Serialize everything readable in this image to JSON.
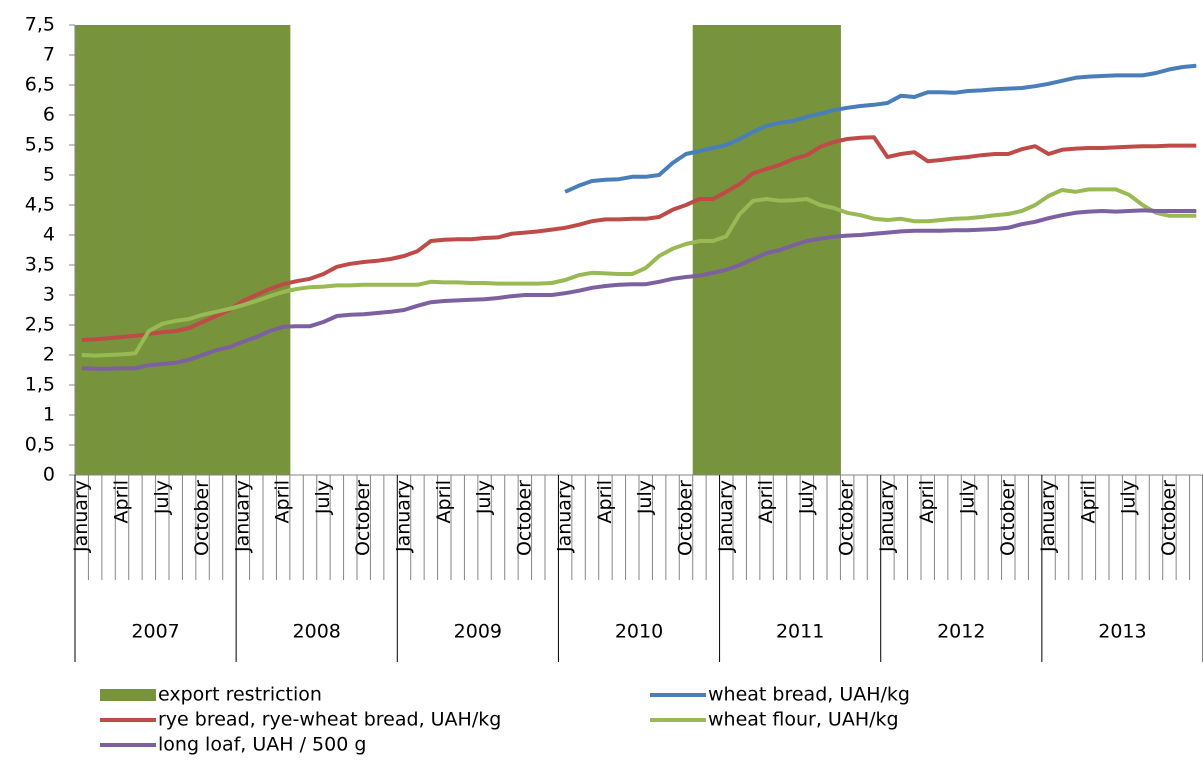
{
  "chart_data": {
    "type": "line",
    "categories": [
      "January",
      null,
      null,
      "April",
      null,
      null,
      "July",
      null,
      null,
      "October",
      null,
      null,
      "January",
      null,
      null,
      "April",
      null,
      null,
      "July",
      null,
      null,
      "October",
      null,
      null,
      "January",
      null,
      null,
      "April",
      null,
      null,
      "July",
      null,
      null,
      "October",
      null,
      null,
      "January",
      null,
      null,
      "April",
      null,
      null,
      "July",
      null,
      null,
      "October",
      null,
      null,
      "January",
      null,
      null,
      "April",
      null,
      null,
      "July",
      null,
      null,
      "October",
      null,
      null,
      "January",
      null,
      null,
      "April",
      null,
      null,
      "July",
      null,
      null,
      "October",
      null,
      null,
      "January",
      null,
      null,
      "April",
      null,
      null,
      "July",
      null,
      null,
      "October",
      null,
      null
    ],
    "year_groups": [
      "2007",
      "2008",
      "2009",
      "2010",
      "2011",
      "2012",
      "2013"
    ],
    "ylim": [
      0,
      7.5
    ],
    "yticks": [
      0,
      {
        "value": 0.5,
        "label": "0,5"
      },
      1,
      {
        "value": 1.5,
        "label": "1,5"
      },
      2,
      {
        "value": 2.5,
        "label": "2,5"
      },
      3,
      {
        "value": 3.5,
        "label": "3,5"
      },
      4,
      {
        "value": 4.5,
        "label": "4,5"
      },
      5,
      {
        "value": 5.5,
        "label": "5,5"
      },
      6,
      {
        "value": 6.5,
        "label": "6,5"
      },
      7,
      {
        "value": 7.5,
        "label": "7,5"
      }
    ],
    "series": [
      {
        "name": "export restriction",
        "type": "bar",
        "color": "#77933c",
        "values": [
          7.5,
          7.5,
          7.5,
          7.5,
          7.5,
          7.5,
          7.5,
          7.5,
          7.5,
          7.5,
          7.5,
          7.5,
          7.5,
          7.5,
          7.5,
          7.5,
          null,
          null,
          null,
          null,
          null,
          null,
          null,
          null,
          null,
          null,
          null,
          null,
          null,
          null,
          null,
          null,
          null,
          null,
          null,
          null,
          null,
          null,
          null,
          null,
          null,
          null,
          null,
          null,
          null,
          null,
          7.5,
          7.5,
          7.5,
          7.5,
          7.5,
          7.5,
          7.5,
          7.5,
          7.5,
          7.5,
          7.5,
          null,
          null,
          null,
          null,
          null,
          null,
          null,
          null,
          null,
          null,
          null,
          null,
          null,
          null,
          null,
          null,
          null,
          null,
          null,
          null,
          null,
          null,
          null,
          null,
          null,
          null,
          null
        ]
      },
      {
        "name": "wheat bread, UAH/kg",
        "color": "#4a7ebb",
        "values": [
          null,
          null,
          null,
          null,
          null,
          null,
          null,
          null,
          null,
          null,
          null,
          null,
          null,
          null,
          null,
          null,
          null,
          null,
          null,
          null,
          null,
          null,
          null,
          null,
          null,
          null,
          null,
          null,
          null,
          null,
          null,
          null,
          null,
          null,
          null,
          null,
          4.72,
          4.82,
          4.9,
          4.92,
          4.93,
          4.97,
          4.97,
          5.0,
          5.2,
          5.35,
          5.4,
          5.45,
          5.5,
          5.6,
          5.72,
          5.82,
          5.87,
          5.9,
          5.97,
          6.02,
          6.08,
          6.12,
          6.15,
          6.17,
          6.2,
          6.32,
          6.3,
          6.38,
          6.38,
          6.37,
          6.4,
          6.41,
          6.43,
          6.44,
          6.45,
          6.48,
          6.52,
          6.57,
          6.62,
          6.64,
          6.65,
          6.66,
          6.66,
          6.66,
          6.7,
          6.76,
          6.8,
          6.82
        ]
      },
      {
        "name": "rye bread, rye-wheat bread, UAH/kg",
        "color": "#be4b48",
        "values": [
          2.25,
          2.26,
          2.28,
          2.3,
          2.32,
          2.35,
          2.38,
          2.4,
          2.45,
          2.55,
          2.65,
          2.75,
          2.9,
          3.0,
          3.1,
          3.18,
          3.23,
          3.27,
          3.35,
          3.47,
          3.52,
          3.55,
          3.57,
          3.6,
          3.65,
          3.73,
          3.9,
          3.92,
          3.93,
          3.93,
          3.95,
          3.96,
          4.02,
          4.04,
          4.06,
          4.09,
          4.12,
          4.17,
          4.23,
          4.26,
          4.26,
          4.27,
          4.27,
          4.3,
          4.42,
          4.5,
          4.6,
          4.6,
          4.72,
          4.85,
          5.03,
          5.1,
          5.17,
          5.27,
          5.33,
          5.47,
          5.55,
          5.6,
          5.62,
          5.63,
          5.3,
          5.35,
          5.38,
          5.23,
          5.25,
          5.28,
          5.3,
          5.33,
          5.35,
          5.35,
          5.43,
          5.48,
          5.35,
          5.42,
          5.44,
          5.45,
          5.45,
          5.46,
          5.47,
          5.48,
          5.48,
          5.49,
          5.49,
          5.49
        ]
      },
      {
        "name": "wheat flour, UAH/kg",
        "color": "#98b954",
        "values": [
          2.0,
          1.99,
          2.0,
          2.01,
          2.03,
          2.4,
          2.52,
          2.57,
          2.6,
          2.67,
          2.72,
          2.77,
          2.83,
          2.9,
          2.98,
          3.05,
          3.1,
          3.13,
          3.14,
          3.16,
          3.16,
          3.17,
          3.17,
          3.17,
          3.17,
          3.17,
          3.22,
          3.21,
          3.21,
          3.2,
          3.2,
          3.19,
          3.19,
          3.19,
          3.19,
          3.2,
          3.25,
          3.33,
          3.37,
          3.36,
          3.35,
          3.35,
          3.45,
          3.65,
          3.77,
          3.85,
          3.9,
          3.9,
          3.98,
          4.35,
          4.57,
          4.6,
          4.57,
          4.58,
          4.6,
          4.5,
          4.45,
          4.37,
          4.33,
          4.27,
          4.25,
          4.27,
          4.23,
          4.23,
          4.25,
          4.27,
          4.28,
          4.3,
          4.33,
          4.35,
          4.4,
          4.5,
          4.65,
          4.75,
          4.72,
          4.76,
          4.76,
          4.76,
          4.67,
          4.5,
          4.37,
          4.32,
          4.32,
          4.32
        ]
      },
      {
        "name": " long loaf, UAH / 500 g",
        "color": "#7d60a0",
        "values": [
          1.78,
          1.77,
          1.77,
          1.78,
          1.78,
          1.83,
          1.85,
          1.87,
          1.92,
          2.0,
          2.08,
          2.13,
          2.22,
          2.3,
          2.4,
          2.47,
          2.48,
          2.48,
          2.55,
          2.65,
          2.67,
          2.68,
          2.7,
          2.72,
          2.75,
          2.82,
          2.88,
          2.9,
          2.91,
          2.92,
          2.93,
          2.95,
          2.98,
          3.0,
          3.0,
          3.0,
          3.03,
          3.07,
          3.12,
          3.15,
          3.17,
          3.18,
          3.18,
          3.22,
          3.27,
          3.3,
          3.32,
          3.37,
          3.42,
          3.5,
          3.6,
          3.7,
          3.75,
          3.83,
          3.9,
          3.94,
          3.97,
          3.99,
          4.0,
          4.02,
          4.04,
          4.06,
          4.07,
          4.07,
          4.07,
          4.08,
          4.08,
          4.09,
          4.1,
          4.12,
          4.18,
          4.22,
          4.28,
          4.33,
          4.37,
          4.39,
          4.4,
          4.39,
          4.4,
          4.41,
          4.4,
          4.4,
          4.4,
          4.4
        ]
      }
    ]
  }
}
